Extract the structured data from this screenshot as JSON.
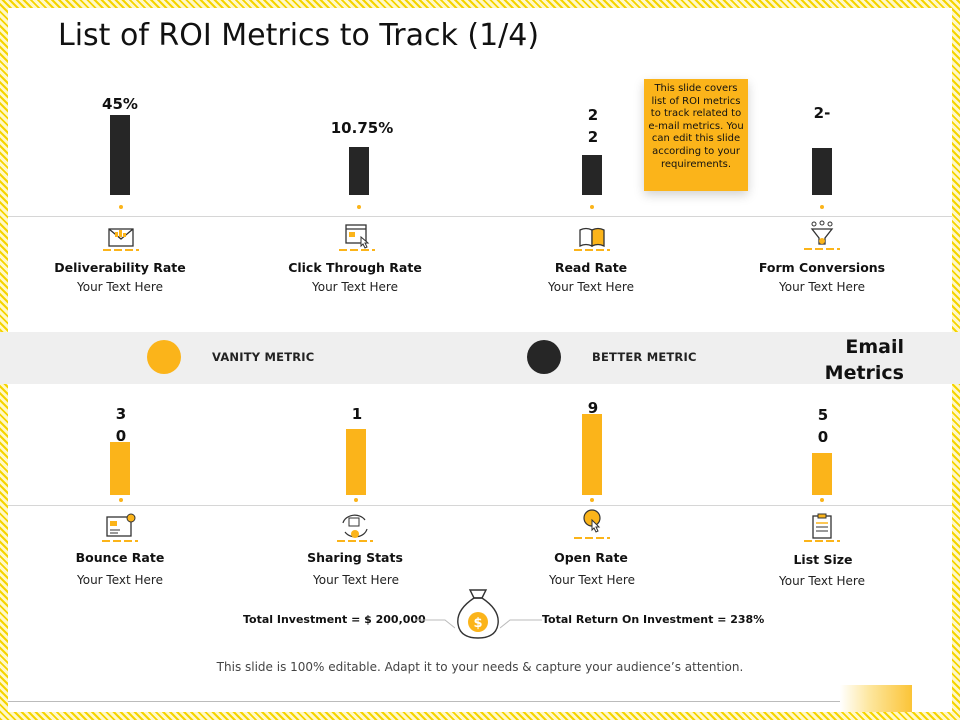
{
  "title": "List of ROI Metrics to Track (1/4)",
  "note": "This slide covers list of ROI metrics to track related to e-mail metrics. You can edit this slide according to your requirements.",
  "top_metrics": [
    {
      "value": "45%",
      "name": "Deliverability Rate",
      "desc": "Your Text Here",
      "icon": "envelope-chart-icon"
    },
    {
      "value": "10.75%",
      "name": "Click Through Rate",
      "desc": "Your Text Here",
      "icon": "browser-click-icon"
    },
    {
      "value": "22",
      "name": "Read Rate",
      "desc": "Your Text Here",
      "icon": "open-book-icon"
    },
    {
      "value": "2-",
      "name": "Form Conversions",
      "desc": "Your Text Here",
      "icon": "funnel-icon"
    }
  ],
  "legend": {
    "vanity": "VANITY METRIC",
    "better": "BETTER METRIC",
    "vanity_color": "#fbb41a",
    "better_color": "#262626",
    "section": "Email Metrics"
  },
  "bottom_metrics": [
    {
      "value": "30",
      "name": "Bounce Rate",
      "desc": "Your Text Here",
      "icon": "dashboard-icon"
    },
    {
      "value": "15",
      "name": "Sharing Stats",
      "desc": "Your Text Here",
      "icon": "share-cycle-icon"
    },
    {
      "value": "95",
      "name": "Open Rate",
      "desc": "Your Text Here",
      "icon": "bulb-click-icon"
    },
    {
      "value": "50",
      "name": "List Size",
      "desc": "Your Text Here",
      "icon": "clipboard-list-icon"
    }
  ],
  "investment": {
    "left": "Total Investment = $ 200,000",
    "right": "Total Return On Investment = 238%",
    "icon": "money-bag-icon"
  },
  "footer": "This slide is 100% editable. Adapt it to your needs & capture your audience’s attention."
}
